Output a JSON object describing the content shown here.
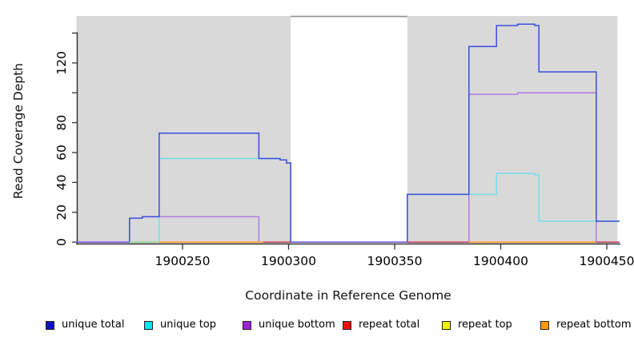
{
  "chart_data": {
    "type": "line",
    "title": "",
    "xlabel": "Coordinate in Reference Genome",
    "ylabel": "Read Coverage Depth",
    "xlim": [
      1900200,
      1900456
    ],
    "ylim": [
      0,
      151
    ],
    "grid": false,
    "legend_position": "bottom",
    "x_axis": {
      "tick_values": [
        1900250,
        1900300,
        1900350,
        1900400,
        1900450
      ],
      "tick_labels": [
        "1900250",
        "1900300",
        "1900350",
        "1900400",
        "1900450"
      ]
    },
    "y_axis": {
      "tick_values": [
        0,
        20,
        40,
        60,
        80,
        100,
        120,
        140
      ],
      "tick_labels": [
        "0",
        "20",
        "40",
        "60",
        "80",
        "",
        "120",
        ""
      ]
    },
    "shaded_regions": [
      {
        "from": 1900200,
        "to": 1900301,
        "color": "#d9d9d9"
      },
      {
        "from": 1900356,
        "to": 1900455,
        "color": "#d9d9d9"
      }
    ],
    "gap_top_border": {
      "from": 1900301,
      "to": 1900356,
      "color": "#8f8f8f"
    },
    "series": [
      {
        "name": "repeat total",
        "legend_color": "#ea0f0f",
        "line_color": "#cc4466",
        "points": [
          [
            1900200,
            0
          ],
          [
            1900456,
            0
          ]
        ]
      },
      {
        "name": "repeat top",
        "legend_color": "#f0f000",
        "line_color": "#e8e83a",
        "points": [
          [
            1900200,
            0
          ],
          [
            1900456,
            0
          ]
        ]
      },
      {
        "name": "repeat bottom",
        "legend_color": "#ff9b00",
        "line_color": "#ff9f2a",
        "points": [
          [
            1900200,
            0
          ],
          [
            1900456,
            0
          ]
        ]
      },
      {
        "name": "unique bottom",
        "legend_color": "#9a23d8",
        "line_color": "#b27ae8",
        "points": [
          [
            1900200,
            0
          ],
          [
            1900225,
            16
          ],
          [
            1900231,
            17
          ],
          [
            1900286,
            0
          ],
          [
            1900385,
            99
          ],
          [
            1900408,
            100
          ],
          [
            1900445,
            0
          ],
          [
            1900456,
            0
          ]
        ]
      },
      {
        "name": "unique top",
        "legend_color": "#00e5ee",
        "line_color": "#74dfe9",
        "points": [
          [
            1900200,
            0
          ],
          [
            1900239,
            56
          ],
          [
            1900296,
            55
          ],
          [
            1900299,
            53
          ],
          [
            1900301,
            0
          ],
          [
            1900356,
            32
          ],
          [
            1900398,
            46
          ],
          [
            1900416,
            45
          ],
          [
            1900418,
            14
          ],
          [
            1900456,
            14
          ]
        ]
      },
      {
        "name": "unique total",
        "legend_color": "#1111cd",
        "line_color": "#3b4ede",
        "points": [
          [
            1900200,
            0
          ],
          [
            1900225,
            16
          ],
          [
            1900231,
            17
          ],
          [
            1900239,
            73
          ],
          [
            1900286,
            56
          ],
          [
            1900296,
            55
          ],
          [
            1900299,
            53
          ],
          [
            1900301,
            0
          ],
          [
            1900356,
            32
          ],
          [
            1900385,
            131
          ],
          [
            1900398,
            145
          ],
          [
            1900408,
            146
          ],
          [
            1900416,
            145
          ],
          [
            1900418,
            114
          ],
          [
            1900445,
            14
          ],
          [
            1900456,
            14
          ]
        ]
      }
    ],
    "baseline_segments": [
      {
        "from": 1900200,
        "to": 1900225,
        "color": "#8055e8"
      },
      {
        "from": 1900225,
        "to": 1900239,
        "color": "#96d996"
      },
      {
        "from": 1900239,
        "to": 1900288,
        "color": "#ff9f2a"
      },
      {
        "from": 1900288,
        "to": 1900301,
        "color": "#cc4466"
      },
      {
        "from": 1900301,
        "to": 1900356,
        "color": "#6a5bdd"
      },
      {
        "from": 1900356,
        "to": 1900385,
        "color": "#cc4466"
      },
      {
        "from": 1900385,
        "to": 1900445,
        "color": "#ff9f2a"
      },
      {
        "from": 1900445,
        "to": 1900456,
        "color": "#cc4466"
      }
    ],
    "legend": {
      "items": [
        {
          "label": "unique total",
          "color": "#1111cd"
        },
        {
          "label": "unique top",
          "color": "#00e5ee"
        },
        {
          "label": "unique bottom",
          "color": "#9a23d8"
        },
        {
          "label": "repeat total",
          "color": "#ea0f0f"
        },
        {
          "label": "repeat top",
          "color": "#f0f000"
        },
        {
          "label": "repeat bottom",
          "color": "#ff9b00"
        }
      ]
    },
    "colors": {
      "axis": "#333333",
      "panel_shade": "#d9d9d9"
    }
  }
}
